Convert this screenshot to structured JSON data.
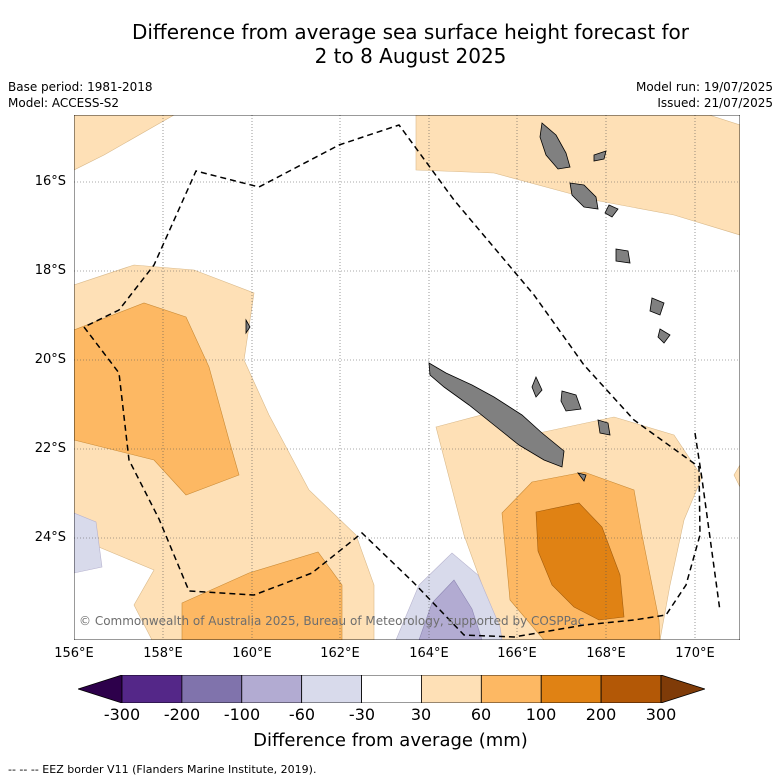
{
  "title": {
    "line1": "Difference from average sea surface height forecast for",
    "line2": "2 to 8 August 2025"
  },
  "meta": {
    "base_period": "Base period: 1981-2018",
    "model": "Model: ACCESS-S2",
    "model_run": "Model run: 19/07/2025",
    "issued": "Issued: 21/07/2025"
  },
  "map": {
    "lat_ticks": [
      "16°S",
      "18°S",
      "20°S",
      "22°S",
      "24°S"
    ],
    "lon_ticks": [
      "156°E",
      "158°E",
      "160°E",
      "162°E",
      "164°E",
      "166°E",
      "168°E",
      "170°E"
    ],
    "copyright": "© Commonwealth of Australia 2025, Bureau of Meteorology, supported by COSPPac",
    "land_color": "#808080",
    "eez_line": "dashed"
  },
  "colorbar": {
    "ticks": [
      "-300",
      "-200",
      "-100",
      "-60",
      "-30",
      "30",
      "60",
      "100",
      "200",
      "300"
    ],
    "colors": [
      "#2d004b",
      "#542788",
      "#8073ac",
      "#b2abd2",
      "#d8daeb",
      "#ffffff",
      "#fee0b6",
      "#fdb863",
      "#e08214",
      "#b35806",
      "#7f3b08"
    ],
    "label": "Difference from average (mm)"
  },
  "footer": "--  --  -- EEZ border V11 (Flanders Marine Institute, 2019)."
}
